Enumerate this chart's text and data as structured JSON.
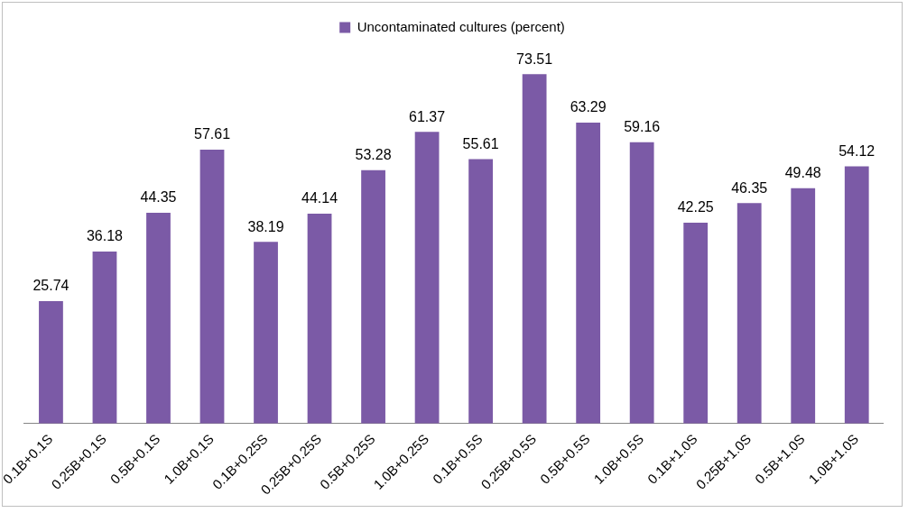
{
  "chart_data": {
    "type": "bar",
    "categories": [
      "0.1B+0.1S",
      "0.25B+0.1S",
      "0.5B+0.1S",
      "1.0B+0.1S",
      "0.1B+0.25S",
      "0.25B+0.25S",
      "0.5B+0.25S",
      "1.0B+0.25S",
      "0.1B+0.5S",
      "0.25B+0.5S",
      "0.5B+0.5S",
      "1.0B+0.5S",
      "0.1B+1.0S",
      "0.25B+1.0S",
      "0.5B+1.0S",
      "1.0B+1.0S"
    ],
    "series": [
      {
        "name": "Uncontaminated cultures (percent)",
        "color": "#7b5aa6",
        "values": [
          25.74,
          36.18,
          44.35,
          57.61,
          38.19,
          44.14,
          53.28,
          61.37,
          55.61,
          73.51,
          63.29,
          59.16,
          42.25,
          46.35,
          49.48,
          54.12
        ]
      }
    ],
    "data_labels": true,
    "legend": "top",
    "grid": false
  }
}
